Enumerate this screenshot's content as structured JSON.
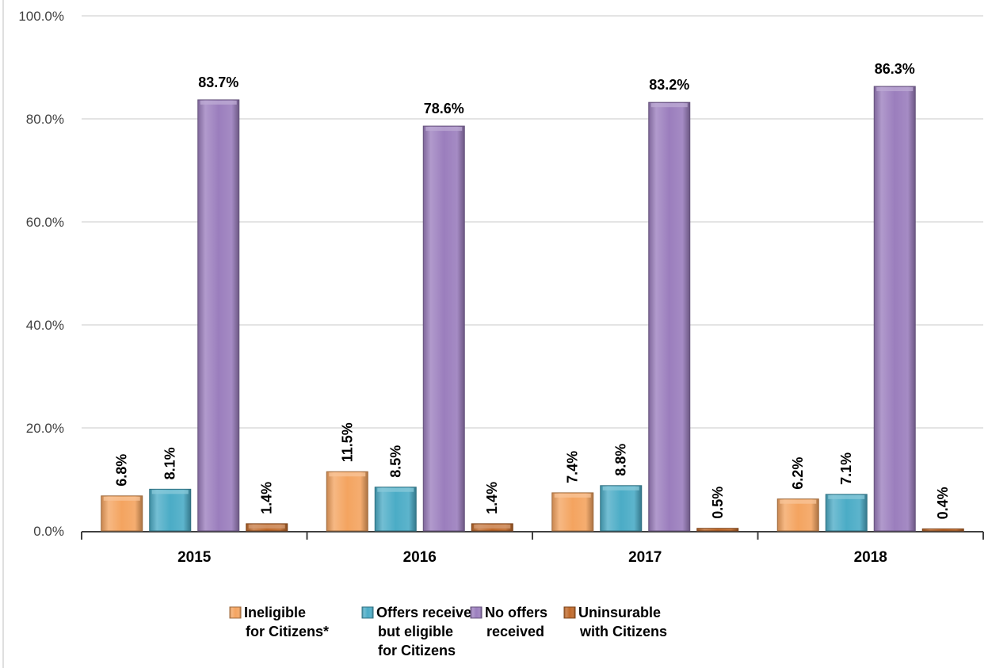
{
  "chart_data": {
    "type": "bar",
    "categories": [
      "2015",
      "2016",
      "2017",
      "2018"
    ],
    "series": [
      {
        "name": "Ineligible for Citizens*",
        "legend_lines": [
          "Ineligible",
          "for Citizens*"
        ],
        "color": "#F4A460",
        "values": [
          6.8,
          11.5,
          7.4,
          6.2
        ],
        "labels": [
          "6.8%",
          "11.5%",
          "7.4%",
          "6.2%"
        ]
      },
      {
        "name": "Offers received but eligible for Citizens",
        "legend_lines": [
          "Offers received",
          "but eligible",
          "for Citizens"
        ],
        "color": "#4BACC6",
        "values": [
          8.1,
          8.5,
          8.8,
          7.1
        ],
        "labels": [
          "8.1%",
          "8.5%",
          "8.8%",
          "7.1%"
        ]
      },
      {
        "name": "No offers received",
        "legend_lines": [
          "No offers",
          "received"
        ],
        "color": "#9B7EBD",
        "values": [
          83.7,
          78.6,
          83.2,
          86.3
        ],
        "labels": [
          "83.7%",
          "78.6%",
          "83.2%",
          "86.3%"
        ]
      },
      {
        "name": "Uninsurable with Citizens",
        "legend_lines": [
          "Uninsurable",
          "with Citizens"
        ],
        "color": "#C0692A",
        "values": [
          1.4,
          1.4,
          0.5,
          0.4
        ],
        "labels": [
          "1.4%",
          "1.4%",
          "0.5%",
          "0.4%"
        ]
      }
    ],
    "y_ticks": [
      "0.0%",
      "20.0%",
      "40.0%",
      "60.0%",
      "80.0%",
      "100.0%"
    ],
    "ylim": [
      0,
      100
    ],
    "grid": true,
    "legend_position": "bottom",
    "title": "",
    "xlabel": "",
    "ylabel": ""
  }
}
